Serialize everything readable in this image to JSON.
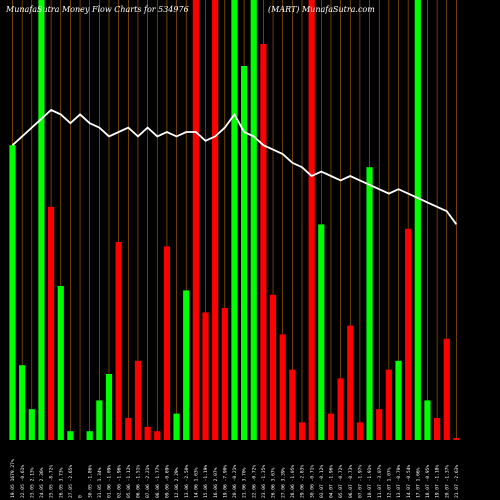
{
  "chart_data": {
    "type": "bar",
    "title": "MunafaSutra  Money Flow  Charts for 534976",
    "title_right": "(MART) MunafaSutra.com",
    "colors": {
      "background": "#000000",
      "up": "#00ff00",
      "down": "#ff0000",
      "grid": "#b36b00",
      "line": "#ffffff",
      "text": "#ffffff"
    },
    "ylim": [
      0,
      100
    ],
    "categories": [
      "19.05 1679.27%",
      "22.05 -0.61%",
      "23.05 2.13%",
      "24.05 2.36%",
      "25.05 -8.72%",
      "26.05 3.73%",
      "27.05 -2.65%",
      "0",
      "30.05 -1.86%",
      "31.05 1.34%",
      "01.06 -1.09%",
      "02.06 -1.96%",
      "05.06 -1.12%",
      "06.06 -1.51%",
      "07.06 -2.21%",
      "08.06 -1.77%",
      "09.06 -0.69%",
      "12.06 2.29%",
      "13.06 -2.50%",
      "14.06 1.63%",
      "15.06 -1.19%",
      "16.06 2.07%",
      "19.06 -7.90%",
      "20.06 -0.21%",
      "21.06 3.70%",
      "22.06 -0.72%",
      "23.06 -1.35%",
      "26.06 3.67%",
      "27.06 3.39%",
      "28.06 -1.05%",
      "29.06 -2.83%",
      "30.06 -0.71%",
      "03.07 -0.12%",
      "04.07 -1.96%",
      "05.07 -0.72%",
      "06.07 -0.73%",
      "07.07 -1.97%",
      "10.07 -1.91%",
      "11.07 -3.07%",
      "12.07 1.07%",
      "13.07 -0.70%",
      "14.07 -0.54%",
      "17.07 1.66%",
      "18.07 -0.95%",
      "19.07 -1.18%",
      "20.07 -1.37%",
      "21.07 -2.63%"
    ],
    "series": [
      {
        "values": [
          67,
          17,
          7,
          100,
          53,
          35,
          2,
          0,
          2,
          9,
          15,
          45,
          5,
          18,
          3,
          2,
          44,
          6,
          34,
          100,
          29,
          100,
          30,
          100,
          85,
          100,
          90,
          33,
          24,
          16,
          4,
          100,
          49,
          6,
          14,
          26,
          4,
          62,
          7,
          16,
          18,
          48,
          100,
          9,
          5,
          23,
          0
        ],
        "colors": [
          "g",
          "g",
          "g",
          "g",
          "r",
          "g",
          "g",
          "",
          "g",
          "g",
          "g",
          "r",
          "r",
          "r",
          "r",
          "r",
          "r",
          "g",
          "g",
          "r",
          "r",
          "r",
          "r",
          "g",
          "g",
          "g",
          "r",
          "r",
          "r",
          "r",
          "r",
          "r",
          "g",
          "r",
          "r",
          "r",
          "r",
          "g",
          "r",
          "r",
          "g",
          "r",
          "g",
          "g",
          "r",
          "r",
          "r"
        ]
      },
      {
        "values": [
          67,
          69,
          71,
          73,
          75,
          74,
          72,
          74,
          72,
          71,
          69,
          70,
          71,
          69,
          71,
          69,
          70,
          69,
          70,
          70,
          68,
          69,
          71,
          74,
          70,
          69,
          67,
          66,
          65,
          63,
          62,
          60,
          61,
          60,
          59,
          60,
          59,
          58,
          57,
          56,
          57,
          56,
          55,
          54,
          53,
          52,
          49
        ]
      }
    ]
  }
}
